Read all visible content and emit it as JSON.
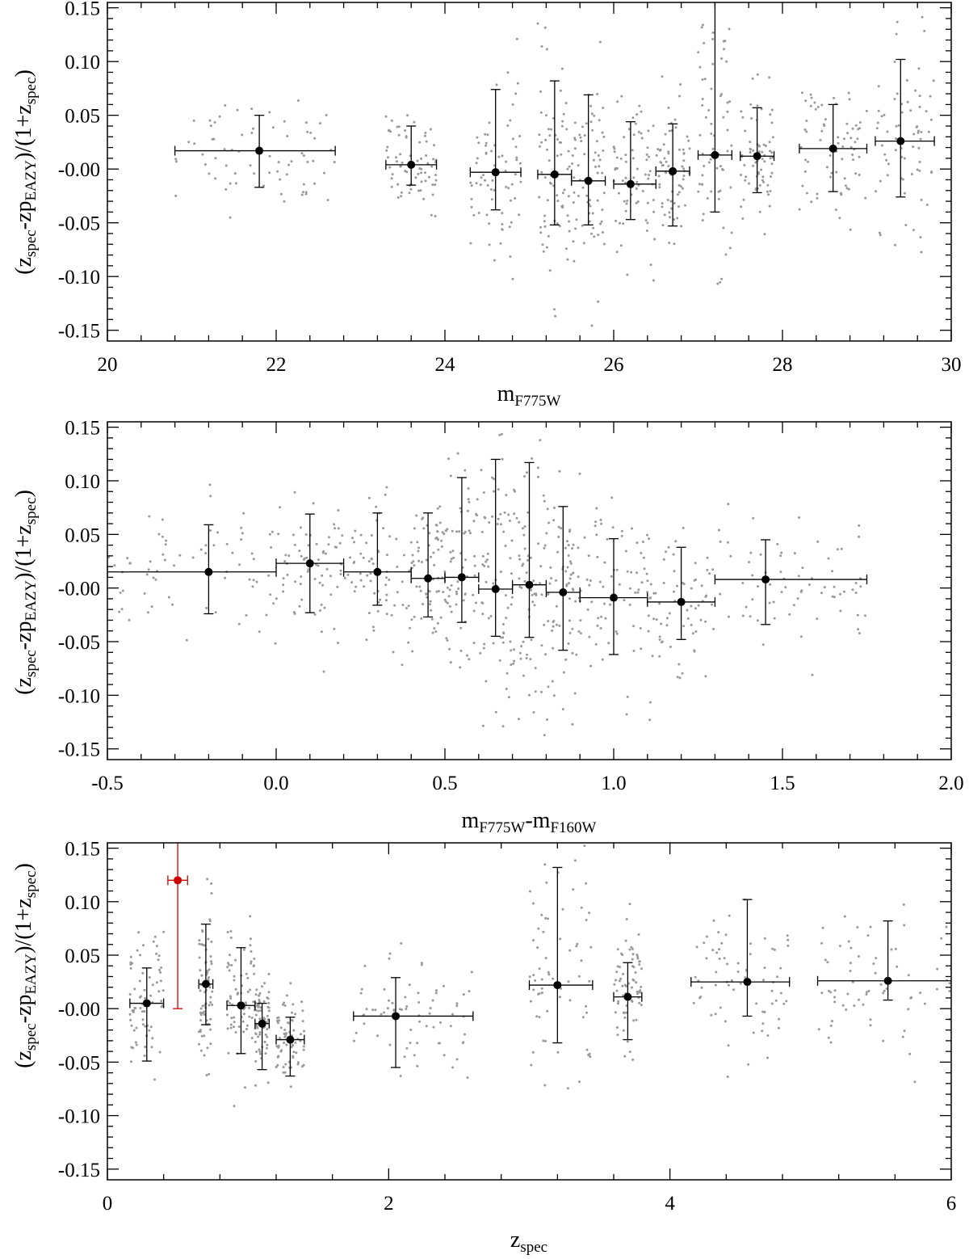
{
  "figure": {
    "panels": [
      {
        "xlabel_main": "m",
        "xlabel_sub": "F775W",
        "ylabel": "(z_spec-zp_EAZY)/(1+z_spec)"
      },
      {
        "xlabel_main": "m",
        "xlabel_sub": "F775W",
        "xlabel_main2": "-m",
        "xlabel_sub2": "F160W",
        "ylabel": "(z_spec-zp_EAZY)/(1+z_spec)"
      },
      {
        "xlabel_main": "z",
        "xlabel_sub": "spec",
        "ylabel": "(z_spec-zp_EAZY)/(1+z_spec)"
      }
    ]
  },
  "colors": {
    "scatter_points": "#999999",
    "binned_points": "#000000",
    "highlight_point": "#cc0000",
    "axes": "#000000"
  },
  "chart_data": [
    {
      "type": "scatter",
      "title": "",
      "xlabel": "m_F775W",
      "ylabel": "(z_spec-zp_EAZY)/(1+z_spec)",
      "xlim": [
        20,
        30
      ],
      "ylim": [
        -0.16,
        0.155
      ],
      "xticks": [
        "20",
        "22",
        "24",
        "26",
        "28",
        "30"
      ],
      "yticks": [
        "-0.15",
        "-0.10",
        "-0.05",
        "-0.00",
        "0.05",
        "0.10",
        "0.15"
      ],
      "grid": false,
      "series": [
        {
          "role": "binned",
          "x": [
            21.8,
            23.6,
            24.6,
            25.3,
            25.7,
            26.2,
            26.7,
            27.2,
            27.7,
            28.6,
            29.4
          ],
          "y": [
            0.017,
            0.004,
            -0.003,
            -0.005,
            -0.011,
            -0.014,
            -0.002,
            0.013,
            0.012,
            0.019,
            0.026
          ],
          "xerr_low": [
            1.0,
            0.3,
            0.3,
            0.2,
            0.2,
            0.2,
            0.2,
            0.2,
            0.2,
            0.4,
            0.3
          ],
          "xerr_high": [
            0.9,
            0.3,
            0.3,
            0.2,
            0.2,
            0.3,
            0.2,
            0.2,
            0.2,
            0.4,
            0.4
          ],
          "y_low": [
            -0.017,
            -0.015,
            -0.038,
            -0.052,
            -0.052,
            -0.047,
            -0.053,
            -0.04,
            -0.022,
            -0.021,
            -0.026
          ],
          "y_high": [
            0.05,
            0.04,
            0.074,
            0.082,
            0.069,
            0.044,
            0.042,
            0.16,
            0.057,
            0.06,
            0.102
          ]
        }
      ]
    },
    {
      "type": "scatter",
      "title": "",
      "xlabel": "m_F775W-m_F160W",
      "ylabel": "(z_spec-zp_EAZY)/(1+z_spec)",
      "xlim": [
        -0.5,
        2.0
      ],
      "ylim": [
        -0.16,
        0.155
      ],
      "xticks": [
        "-0.5",
        "0.0",
        "0.5",
        "1.0",
        "1.5",
        "2.0"
      ],
      "yticks": [
        "-0.15",
        "-0.10",
        "-0.05",
        "-0.00",
        "0.05",
        "0.10",
        "0.15"
      ],
      "grid": false,
      "series": [
        {
          "role": "binned",
          "x": [
            -0.2,
            0.1,
            0.3,
            0.45,
            0.55,
            0.65,
            0.75,
            0.85,
            1.0,
            1.2,
            1.45
          ],
          "y": [
            0.015,
            0.023,
            0.015,
            0.009,
            0.01,
            -0.001,
            0.003,
            -0.004,
            -0.009,
            -0.013,
            0.008
          ],
          "xerr_low": [
            0.3,
            0.1,
            0.1,
            0.05,
            0.05,
            0.05,
            0.05,
            0.05,
            0.1,
            0.1,
            0.15
          ],
          "xerr_high": [
            0.2,
            0.1,
            0.1,
            0.05,
            0.05,
            0.05,
            0.05,
            0.05,
            0.1,
            0.1,
            0.3
          ],
          "y_low": [
            -0.024,
            -0.023,
            -0.016,
            -0.027,
            -0.032,
            -0.045,
            -0.046,
            -0.058,
            -0.062,
            -0.048,
            -0.034
          ],
          "y_high": [
            0.059,
            0.069,
            0.07,
            0.07,
            0.103,
            0.12,
            0.117,
            0.076,
            0.046,
            0.038,
            0.045
          ]
        }
      ]
    },
    {
      "type": "scatter",
      "title": "",
      "xlabel": "z_spec",
      "ylabel": "(z_spec-zp_EAZY)/(1+z_spec)",
      "xlim": [
        0,
        6
      ],
      "ylim": [
        -0.16,
        0.155
      ],
      "xticks": [
        "0",
        "2",
        "4",
        "6"
      ],
      "yticks": [
        "-0.15",
        "-0.10",
        "-0.05",
        "-0.00",
        "0.05",
        "0.10",
        "0.15"
      ],
      "grid": false,
      "series": [
        {
          "role": "binned",
          "x": [
            0.28,
            0.7,
            0.95,
            1.1,
            1.3,
            2.05,
            3.2,
            3.7,
            4.55,
            5.55
          ],
          "y": [
            0.005,
            0.023,
            0.003,
            -0.014,
            -0.029,
            -0.007,
            0.022,
            0.011,
            0.025,
            0.026
          ],
          "xerr_low": [
            0.12,
            0.05,
            0.1,
            0.05,
            0.1,
            0.3,
            0.2,
            0.1,
            0.4,
            0.5
          ],
          "xerr_high": [
            0.12,
            0.05,
            0.1,
            0.05,
            0.1,
            0.55,
            0.25,
            0.1,
            0.3,
            0.5
          ],
          "y_low": [
            -0.049,
            -0.015,
            -0.042,
            -0.057,
            -0.063,
            -0.055,
            -0.032,
            -0.029,
            -0.007,
            0.008
          ],
          "y_high": [
            0.038,
            0.079,
            0.057,
            0.005,
            -0.008,
            0.029,
            0.132,
            0.043,
            0.102,
            0.082
          ]
        },
        {
          "role": "highlight",
          "x": [
            0.5
          ],
          "y": [
            0.12
          ],
          "xerr_low": [
            0.07
          ],
          "xerr_high": [
            0.07
          ],
          "y_low": [
            0.0
          ],
          "y_high": [
            0.165
          ]
        }
      ]
    }
  ]
}
